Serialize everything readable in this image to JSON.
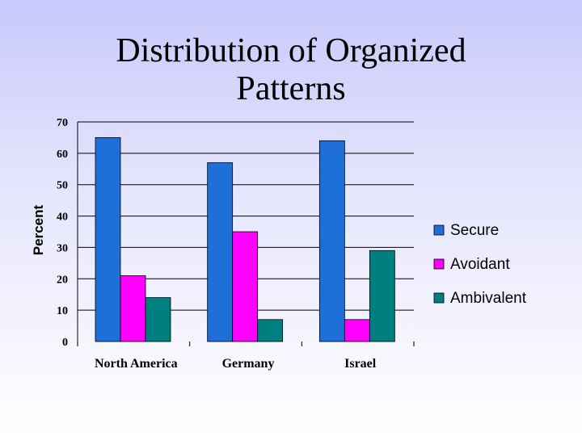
{
  "slide": {
    "title_line1": "Distribution of Organized",
    "title_line2": "Patterns"
  },
  "chart_data": {
    "type": "bar",
    "title": "Distribution of Organized Patterns",
    "xlabel": "",
    "ylabel": "Percent",
    "ylim": [
      0,
      70
    ],
    "yticks": [
      0,
      10,
      20,
      30,
      40,
      50,
      60,
      70
    ],
    "categories": [
      "North America",
      "Germany",
      "Israel"
    ],
    "series": [
      {
        "name": "Secure",
        "color": "#1f6fd8",
        "values": [
          65,
          57,
          64
        ]
      },
      {
        "name": "Avoidant",
        "color": "#ff00ff",
        "values": [
          21,
          35,
          7
        ]
      },
      {
        "name": "Ambivalent",
        "color": "#007f80",
        "values": [
          14,
          7,
          29
        ]
      }
    ],
    "grid": true,
    "legend": "right"
  }
}
